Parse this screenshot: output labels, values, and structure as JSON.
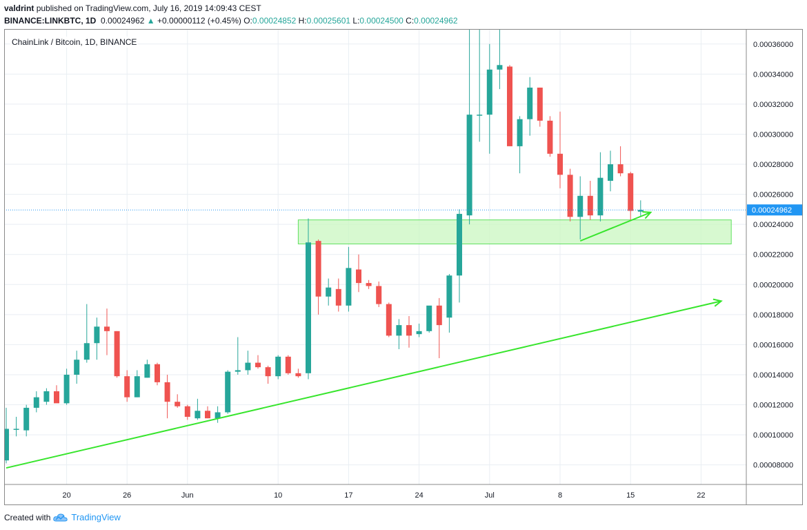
{
  "header": {
    "author": "valdrint",
    "published_text": "published on TradingView.com, July 16, 2019 14:09:43 CEST",
    "symbol_interval": "BINANCE:LINKBTC, 1D",
    "last": "0.00024962",
    "up_arrow": "▲",
    "change": "+0.00000112 (+0.45%)",
    "o_label": "O:",
    "o_value": "0.00024852",
    "h_label": "H:",
    "h_value": "0.00025601",
    "l_label": "L:",
    "l_value": "0.00024500",
    "c_label": "C:",
    "c_value": "0.00024962"
  },
  "footer": {
    "created_with": "Created with",
    "brand": "TradingView",
    "logo_icon": "tradingview-cloud-icon"
  },
  "colors": {
    "up": "#26a69a",
    "down": "#ef5350",
    "trendline": "#37e52c",
    "zone_fill": "#c9f7c0",
    "zone_stroke": "#60e060",
    "price_line": "#2196f3",
    "grid": "#e9eef3",
    "text": "#131722"
  },
  "chart_data": {
    "type": "candlestick",
    "title": "ChainLink / Bitcoin, 1D, BINANCE",
    "y_range": [
      6.7e-05,
      0.00037
    ],
    "y_ticks": [
      "0.00008000",
      "0.00010000",
      "0.00012000",
      "0.00014000",
      "0.00016000",
      "0.00018000",
      "0.00020000",
      "0.00022000",
      "0.00024000",
      "0.00026000",
      "0.00028000",
      "0.00030000",
      "0.00032000",
      "0.00034000",
      "0.00036000"
    ],
    "x_start": "2019-05-14",
    "x_end": "2019-07-25",
    "x_ticks": [
      {
        "date": "2019-05-20",
        "label": "20"
      },
      {
        "date": "2019-05-26",
        "label": "26"
      },
      {
        "date": "2019-06-01",
        "label": "Jun"
      },
      {
        "date": "2019-06-10",
        "label": "10"
      },
      {
        "date": "2019-06-17",
        "label": "17"
      },
      {
        "date": "2019-06-24",
        "label": "24"
      },
      {
        "date": "2019-07-01",
        "label": "Jul"
      },
      {
        "date": "2019-07-08",
        "label": "8"
      },
      {
        "date": "2019-07-15",
        "label": "15"
      },
      {
        "date": "2019-07-22",
        "label": "22"
      }
    ],
    "last_price_label": "0.00024962",
    "last_price": 0.00024962,
    "candles": [
      {
        "date": "2019-05-14",
        "o": 8.3e-05,
        "h": 0.000118,
        "l": 8.1e-05,
        "c": 0.000104
      },
      {
        "date": "2019-05-15",
        "o": 0.000104,
        "h": 0.000112,
        "l": 9.9e-05,
        "c": 0.000104
      },
      {
        "date": "2019-05-16",
        "o": 0.000103,
        "h": 0.00012,
        "l": 9.9e-05,
        "c": 0.000118
      },
      {
        "date": "2019-05-17",
        "o": 0.000118,
        "h": 0.000129,
        "l": 0.000115,
        "c": 0.000125
      },
      {
        "date": "2019-05-18",
        "o": 0.000122,
        "h": 0.000131,
        "l": 0.00012,
        "c": 0.000129
      },
      {
        "date": "2019-05-19",
        "o": 0.000129,
        "h": 0.000133,
        "l": 0.000122,
        "c": 0.000121
      },
      {
        "date": "2019-05-20",
        "o": 0.000121,
        "h": 0.000144,
        "l": 0.00012,
        "c": 0.00014
      },
      {
        "date": "2019-05-21",
        "o": 0.00014,
        "h": 0.000156,
        "l": 0.000134,
        "c": 0.00015
      },
      {
        "date": "2019-05-22",
        "o": 0.00015,
        "h": 0.000187,
        "l": 0.000148,
        "c": 0.000161
      },
      {
        "date": "2019-05-23",
        "o": 0.000161,
        "h": 0.000178,
        "l": 0.00015,
        "c": 0.000172
      },
      {
        "date": "2019-05-24",
        "o": 0.000172,
        "h": 0.000184,
        "l": 0.000153,
        "c": 0.000169
      },
      {
        "date": "2019-05-25",
        "o": 0.000169,
        "h": 0.000169,
        "l": 0.000138,
        "c": 0.000139
      },
      {
        "date": "2019-05-26",
        "o": 0.000139,
        "h": 0.000143,
        "l": 0.000122,
        "c": 0.000125
      },
      {
        "date": "2019-05-27",
        "o": 0.000125,
        "h": 0.000143,
        "l": 0.000125,
        "c": 0.000139
      },
      {
        "date": "2019-05-28",
        "o": 0.000138,
        "h": 0.00015,
        "l": 0.000138,
        "c": 0.000147
      },
      {
        "date": "2019-05-29",
        "o": 0.000147,
        "h": 0.000148,
        "l": 0.000133,
        "c": 0.000135
      },
      {
        "date": "2019-05-30",
        "o": 0.000135,
        "h": 0.00014,
        "l": 0.000111,
        "c": 0.000122
      },
      {
        "date": "2019-05-31",
        "o": 0.000122,
        "h": 0.000127,
        "l": 0.000118,
        "c": 0.000119
      },
      {
        "date": "2019-06-01",
        "o": 0.000119,
        "h": 0.00012,
        "l": 0.00011,
        "c": 0.000112
      },
      {
        "date": "2019-06-02",
        "o": 0.000111,
        "h": 0.000124,
        "l": 0.00011,
        "c": 0.000116
      },
      {
        "date": "2019-06-03",
        "o": 0.000116,
        "h": 0.000119,
        "l": 0.000111,
        "c": 0.000111
      },
      {
        "date": "2019-06-04",
        "o": 0.000111,
        "h": 0.000119,
        "l": 0.000108,
        "c": 0.000115
      },
      {
        "date": "2019-06-05",
        "o": 0.000115,
        "h": 0.000143,
        "l": 0.000114,
        "c": 0.000142
      },
      {
        "date": "2019-06-06",
        "o": 0.000142,
        "h": 0.000165,
        "l": 0.00014,
        "c": 0.000143
      },
      {
        "date": "2019-06-07",
        "o": 0.000143,
        "h": 0.000156,
        "l": 0.00014,
        "c": 0.000148
      },
      {
        "date": "2019-06-08",
        "o": 0.000148,
        "h": 0.000153,
        "l": 0.000144,
        "c": 0.000145
      },
      {
        "date": "2019-06-09",
        "o": 0.000145,
        "h": 0.000146,
        "l": 0.000134,
        "c": 0.000139
      },
      {
        "date": "2019-06-10",
        "o": 0.000139,
        "h": 0.000153,
        "l": 0.000137,
        "c": 0.000152
      },
      {
        "date": "2019-06-11",
        "o": 0.000152,
        "h": 0.000153,
        "l": 0.00014,
        "c": 0.000141
      },
      {
        "date": "2019-06-12",
        "o": 0.000141,
        "h": 0.000144,
        "l": 0.000138,
        "c": 0.000139
      },
      {
        "date": "2019-06-13",
        "o": 0.000141,
        "h": 0.000244,
        "l": 0.000137,
        "c": 0.000228
      },
      {
        "date": "2019-06-14",
        "o": 0.000229,
        "h": 0.00023,
        "l": 0.00018,
        "c": 0.000192
      },
      {
        "date": "2019-06-15",
        "o": 0.000192,
        "h": 0.000204,
        "l": 0.000186,
        "c": 0.000198
      },
      {
        "date": "2019-06-16",
        "o": 0.000197,
        "h": 0.000204,
        "l": 0.000182,
        "c": 0.000186
      },
      {
        "date": "2019-06-17",
        "o": 0.000186,
        "h": 0.000225,
        "l": 0.000182,
        "c": 0.000211
      },
      {
        "date": "2019-06-18",
        "o": 0.00021,
        "h": 0.00022,
        "l": 0.000195,
        "c": 0.000201
      },
      {
        "date": "2019-06-19",
        "o": 0.000201,
        "h": 0.000203,
        "l": 0.000197,
        "c": 0.000199
      },
      {
        "date": "2019-06-20",
        "o": 0.000199,
        "h": 0.000202,
        "l": 0.000185,
        "c": 0.000187
      },
      {
        "date": "2019-06-21",
        "o": 0.000187,
        "h": 0.000188,
        "l": 0.000165,
        "c": 0.000166
      },
      {
        "date": "2019-06-22",
        "o": 0.000166,
        "h": 0.000177,
        "l": 0.000157,
        "c": 0.000173
      },
      {
        "date": "2019-06-23",
        "o": 0.000173,
        "h": 0.000179,
        "l": 0.000158,
        "c": 0.000166
      },
      {
        "date": "2019-06-24",
        "o": 0.000167,
        "h": 0.000174,
        "l": 0.000165,
        "c": 0.000169
      },
      {
        "date": "2019-06-25",
        "o": 0.000169,
        "h": 0.000184,
        "l": 0.000168,
        "c": 0.000186
      },
      {
        "date": "2019-06-26",
        "o": 0.000186,
        "h": 0.000191,
        "l": 0.000151,
        "c": 0.000173
      },
      {
        "date": "2019-06-27",
        "o": 0.000178,
        "h": 0.000207,
        "l": 0.000168,
        "c": 0.000206
      },
      {
        "date": "2019-06-28",
        "o": 0.000206,
        "h": 0.00025,
        "l": 0.000188,
        "c": 0.000247
      },
      {
        "date": "2019-06-29",
        "o": 0.000246,
        "h": 0.000372,
        "l": 0.00024,
        "c": 0.000313
      },
      {
        "date": "2019-06-30",
        "o": 0.000313,
        "h": 0.000372,
        "l": 0.000295,
        "c": 0.000313
      },
      {
        "date": "2019-07-01",
        "o": 0.000313,
        "h": 0.00036,
        "l": 0.000287,
        "c": 0.000343
      },
      {
        "date": "2019-07-02",
        "o": 0.000343,
        "h": 0.000372,
        "l": 0.00033,
        "c": 0.000346
      },
      {
        "date": "2019-07-03",
        "o": 0.000345,
        "h": 0.000346,
        "l": 0.000292,
        "c": 0.000292
      },
      {
        "date": "2019-07-04",
        "o": 0.000292,
        "h": 0.000312,
        "l": 0.000274,
        "c": 0.00031
      },
      {
        "date": "2019-07-05",
        "o": 0.00031,
        "h": 0.000338,
        "l": 0.000299,
        "c": 0.000331
      },
      {
        "date": "2019-07-06",
        "o": 0.000331,
        "h": 0.000331,
        "l": 0.000305,
        "c": 0.000309
      },
      {
        "date": "2019-07-07",
        "o": 0.000309,
        "h": 0.000312,
        "l": 0.000285,
        "c": 0.000287
      },
      {
        "date": "2019-07-08",
        "o": 0.000287,
        "h": 0.000315,
        "l": 0.000264,
        "c": 0.000273
      },
      {
        "date": "2019-07-09",
        "o": 0.000273,
        "h": 0.000277,
        "l": 0.000242,
        "c": 0.000245
      },
      {
        "date": "2019-07-10",
        "o": 0.000245,
        "h": 0.000272,
        "l": 0.00023,
        "c": 0.000259
      },
      {
        "date": "2019-07-11",
        "o": 0.000259,
        "h": 0.000269,
        "l": 0.000243,
        "c": 0.000246
      },
      {
        "date": "2019-07-12",
        "o": 0.000246,
        "h": 0.000288,
        "l": 0.000242,
        "c": 0.000271
      },
      {
        "date": "2019-07-13",
        "o": 0.000269,
        "h": 0.000289,
        "l": 0.000262,
        "c": 0.00028
      },
      {
        "date": "2019-07-14",
        "o": 0.00028,
        "h": 0.000292,
        "l": 0.000272,
        "c": 0.000274
      },
      {
        "date": "2019-07-15",
        "o": 0.000274,
        "h": 0.000275,
        "l": 0.000243,
        "c": 0.000249
      },
      {
        "date": "2019-07-16",
        "o": 0.0002485,
        "h": 0.000256,
        "l": 0.000245,
        "c": 0.0002496
      }
    ],
    "support_zone": {
      "start": "2019-06-12",
      "end": "2019-07-25",
      "top": 0.000243,
      "bottom": 0.000227
    },
    "trend_arrows": [
      {
        "from": {
          "date": "2019-05-14",
          "price": 7.8e-05
        },
        "to": {
          "date": "2019-07-24",
          "price": 0.000189
        }
      },
      {
        "from": {
          "date": "2019-07-10",
          "price": 0.000229
        },
        "to": {
          "date": "2019-07-17",
          "price": 0.000248
        }
      }
    ]
  }
}
